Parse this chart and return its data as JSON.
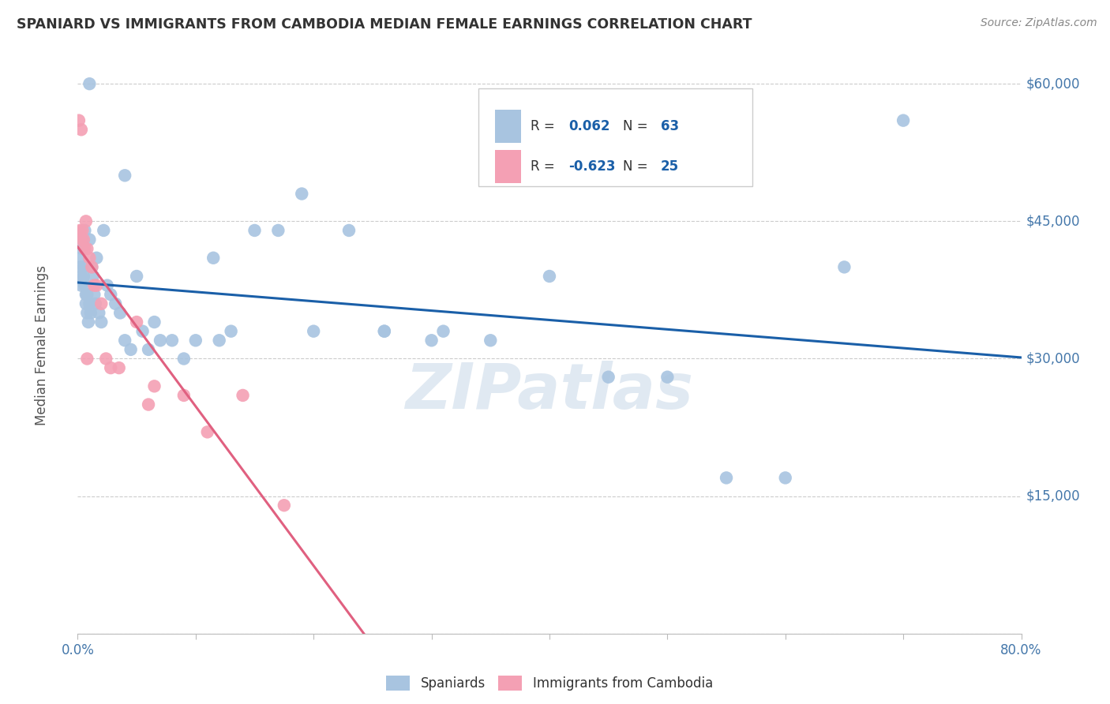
{
  "title": "SPANIARD VS IMMIGRANTS FROM CAMBODIA MEDIAN FEMALE EARNINGS CORRELATION CHART",
  "source": "Source: ZipAtlas.com",
  "ylabel": "Median Female Earnings",
  "spaniards_color": "#a8c4e0",
  "cambodia_color": "#f4a0b4",
  "spaniards_line_color": "#1a5fa8",
  "cambodia_line_color": "#e06080",
  "R_spaniards": "0.062",
  "N_spaniards": "63",
  "R_cambodia": "-0.623",
  "N_cambodia": "25",
  "spaniards_x": [
    0.001,
    0.002,
    0.002,
    0.003,
    0.003,
    0.004,
    0.004,
    0.005,
    0.005,
    0.006,
    0.006,
    0.007,
    0.007,
    0.008,
    0.008,
    0.009,
    0.01,
    0.01,
    0.011,
    0.012,
    0.013,
    0.014,
    0.015,
    0.016,
    0.018,
    0.02,
    0.022,
    0.025,
    0.028,
    0.032,
    0.036,
    0.04,
    0.045,
    0.05,
    0.055,
    0.06,
    0.065,
    0.07,
    0.08,
    0.09,
    0.1,
    0.115,
    0.13,
    0.15,
    0.17,
    0.2,
    0.23,
    0.26,
    0.3,
    0.35,
    0.4,
    0.45,
    0.5,
    0.55,
    0.6,
    0.65,
    0.7,
    0.04,
    0.12,
    0.19,
    0.26,
    0.31,
    0.01
  ],
  "spaniards_y": [
    43000,
    41000,
    40000,
    39000,
    38000,
    43000,
    42000,
    40000,
    39000,
    44000,
    38000,
    37000,
    36000,
    37000,
    35000,
    34000,
    43000,
    36000,
    35000,
    40000,
    39000,
    37000,
    36000,
    41000,
    35000,
    34000,
    44000,
    38000,
    37000,
    36000,
    35000,
    32000,
    31000,
    39000,
    33000,
    31000,
    34000,
    32000,
    32000,
    30000,
    32000,
    41000,
    33000,
    44000,
    44000,
    33000,
    44000,
    33000,
    32000,
    32000,
    39000,
    28000,
    28000,
    17000,
    17000,
    40000,
    56000,
    50000,
    32000,
    48000,
    33000,
    33000,
    60000
  ],
  "cambodia_x": [
    0.001,
    0.002,
    0.003,
    0.004,
    0.005,
    0.006,
    0.007,
    0.008,
    0.01,
    0.012,
    0.014,
    0.016,
    0.02,
    0.024,
    0.028,
    0.035,
    0.05,
    0.065,
    0.09,
    0.11,
    0.14,
    0.175,
    0.06,
    0.008,
    0.003
  ],
  "cambodia_y": [
    56000,
    44000,
    43000,
    44000,
    43000,
    42000,
    45000,
    42000,
    41000,
    40000,
    38000,
    38000,
    36000,
    30000,
    29000,
    29000,
    34000,
    27000,
    26000,
    22000,
    26000,
    14000,
    25000,
    30000,
    55000
  ],
  "xlim": [
    0.0,
    0.8
  ],
  "ylim": [
    0,
    63000
  ],
  "ytick_vals": [
    0,
    15000,
    30000,
    45000,
    60000
  ],
  "ytick_labels_right": [
    "",
    "$15,000",
    "$30,000",
    "$45,000",
    "$60,000"
  ],
  "x_tick_positions": [
    0.0,
    0.1,
    0.2,
    0.3,
    0.4,
    0.5,
    0.6,
    0.7,
    0.8
  ],
  "watermark_text": "ZIPatlas",
  "background_color": "#ffffff",
  "legend_box_color": "#f0f0f0",
  "legend_border_color": "#cccccc"
}
